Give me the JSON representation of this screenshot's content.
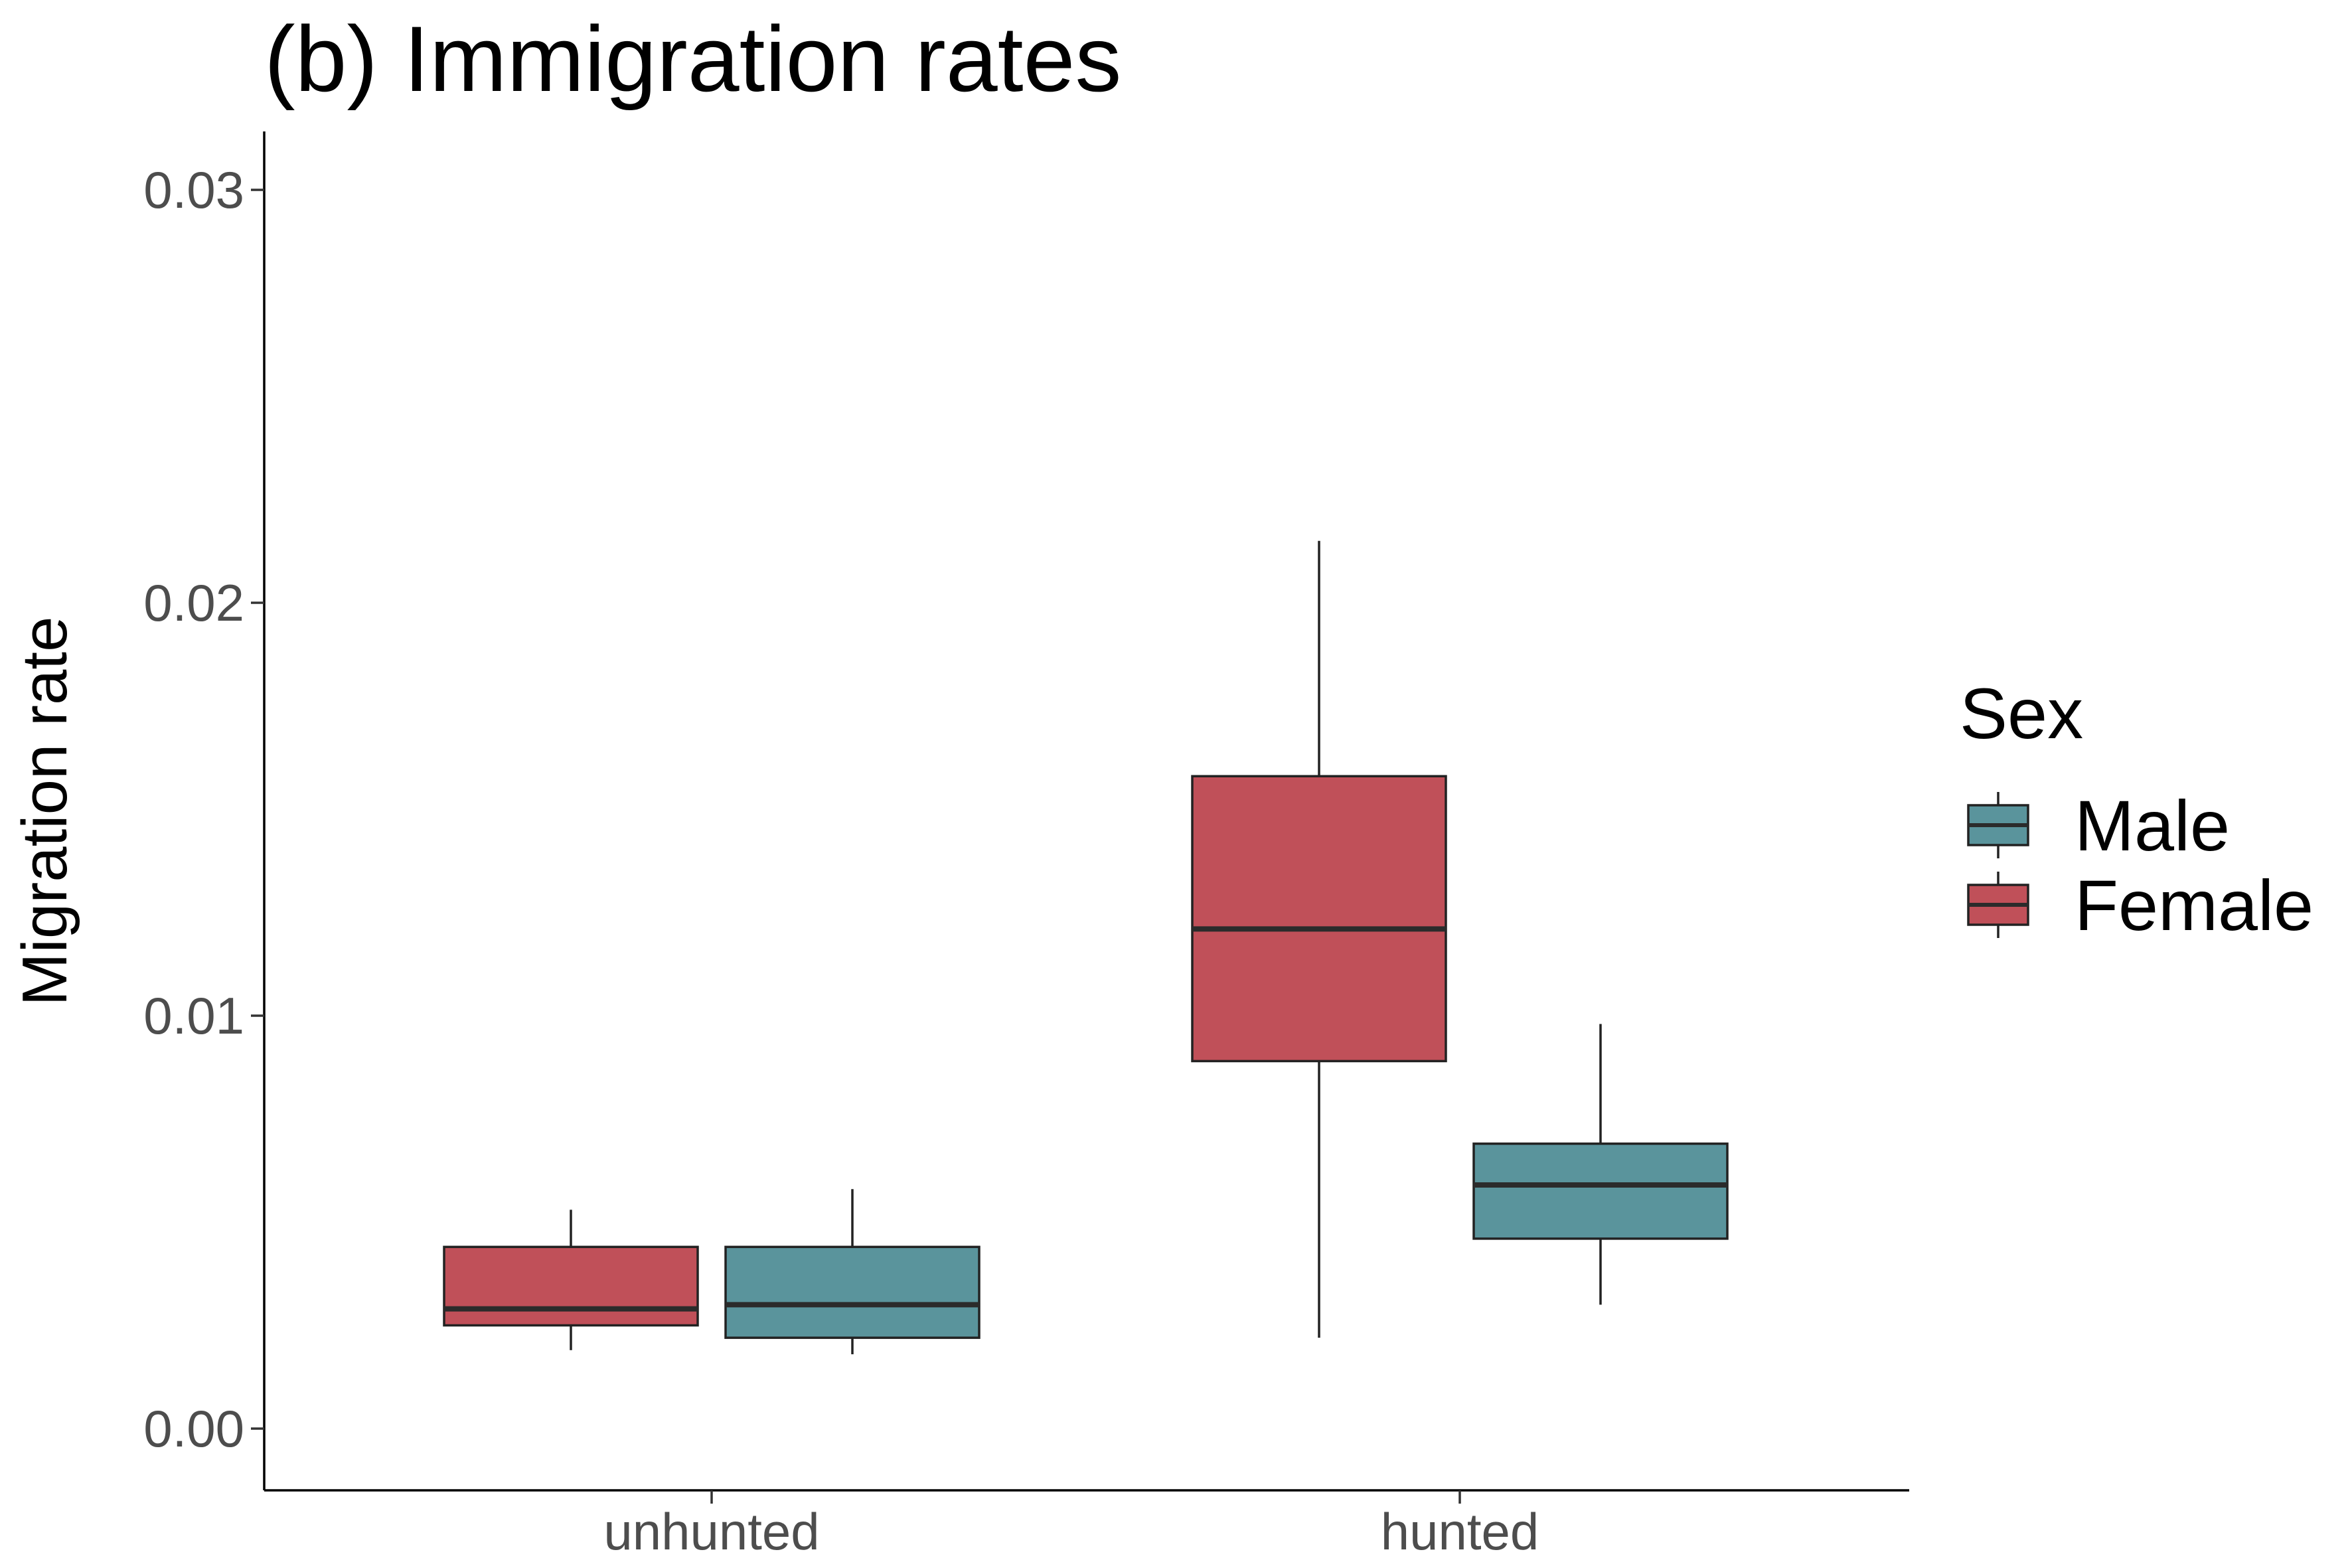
{
  "chart_data": {
    "type": "boxplot",
    "title": "(b) Immigration rates",
    "xlabel": "",
    "ylabel": "Migration rate",
    "ylim": [
      -0.0015,
      0.0315
    ],
    "yticks": [
      0.0,
      0.01,
      0.02,
      0.03
    ],
    "ytick_labels": [
      "0.00",
      "0.01",
      "0.02",
      "0.03"
    ],
    "categories": [
      "unhunted",
      "hunted"
    ],
    "grid": false,
    "legend": {
      "title": "Sex",
      "placement": "right",
      "entries": [
        {
          "name": "Male",
          "color": "#5a949c"
        },
        {
          "name": "Female",
          "color": "#c05059"
        }
      ]
    },
    "series": [
      {
        "name": "Female",
        "color": "#c05059",
        "boxes": [
          {
            "category": "unhunted",
            "min": 0.0019,
            "q1": 0.0025,
            "median": 0.0029,
            "q3": 0.0044,
            "max": 0.0053
          },
          {
            "category": "hunted",
            "min": 0.0022,
            "q1": 0.0089,
            "median": 0.0121,
            "q3": 0.0158,
            "max": 0.0215
          }
        ]
      },
      {
        "name": "Male",
        "color": "#5a949c",
        "boxes": [
          {
            "category": "unhunted",
            "min": 0.0018,
            "q1": 0.0022,
            "median": 0.003,
            "q3": 0.0044,
            "max": 0.0058
          },
          {
            "category": "hunted",
            "min": 0.003,
            "q1": 0.0046,
            "median": 0.0059,
            "q3": 0.0069,
            "max": 0.0098
          }
        ]
      }
    ]
  }
}
